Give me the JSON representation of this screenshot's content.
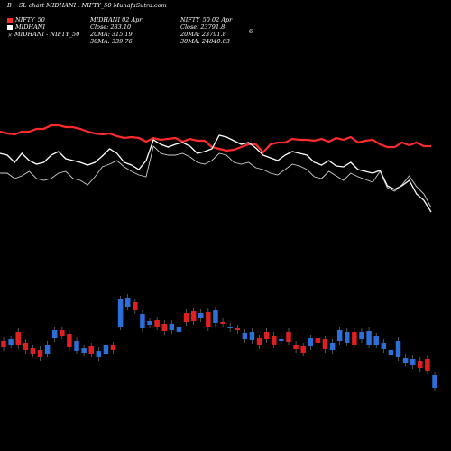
{
  "header": {
    "left_letter": "B",
    "title": "SL chart MIDHANI : NIFTY_50  MunafaSutra.com"
  },
  "legend": [
    {
      "label": "NIFTY_50",
      "color": "#ff2a2a"
    },
    {
      "label": "MIDHANI",
      "color": "#ffffff"
    },
    {
      "label": "MIDHANI - NIFTY_50",
      "color": "#bbbbbb"
    }
  ],
  "legend_small": "207",
  "midhani_block": {
    "line1": "MIDHANI 02 Apr",
    "line2": "Close: 283.10",
    "line3": "20MA: 315.19",
    "line4": "30MA: 339.76"
  },
  "nifty_block": {
    "line1": "NIFTY_50  02 Apr",
    "line2": "Close: 23791.8",
    "line3": "20MA: 23791.8",
    "line4": "30MA: 24840.83"
  },
  "stray_text": "6",
  "colors": {
    "background": "#000000",
    "nifty": "#ff2a2a",
    "midhani": "#ffffff",
    "ratio": "#cfcfcf",
    "up": "#2d6fd9",
    "down": "#e02020"
  },
  "chart_data": [
    {
      "type": "line",
      "title": "",
      "x": [
        1,
        2,
        3,
        4,
        5,
        6,
        7,
        8,
        9,
        10,
        11,
        12,
        13,
        14,
        15,
        16,
        17,
        18,
        19,
        20,
        21,
        22,
        23,
        24,
        25,
        26,
        27,
        28,
        29,
        30,
        31,
        32,
        33,
        34,
        35,
        36,
        37,
        38,
        39,
        40,
        41,
        42,
        43,
        44,
        45,
        46,
        47,
        48,
        49,
        50,
        51,
        52,
        53,
        54,
        55,
        56,
        57,
        58,
        59,
        60
      ],
      "series": [
        {
          "name": "NIFTY_50",
          "values": [
            146,
            148,
            149,
            146,
            146,
            143,
            143,
            139,
            139,
            141,
            141,
            143,
            146,
            148,
            149,
            148,
            151,
            153,
            152,
            153,
            157,
            153,
            155,
            154,
            153,
            157,
            154,
            156,
            156,
            163,
            165,
            167,
            166,
            163,
            160,
            160,
            169,
            160,
            158,
            158,
            154,
            155,
            155,
            156,
            154,
            157,
            153,
            155,
            152,
            158,
            156,
            155,
            160,
            163,
            163,
            158,
            161,
            158,
            162,
            162
          ]
        },
        {
          "name": "MIDHANI",
          "values": [
            170,
            172,
            180,
            170,
            178,
            182,
            180,
            172,
            168,
            176,
            178,
            180,
            183,
            180,
            173,
            165,
            170,
            180,
            183,
            188,
            178,
            155,
            160,
            163,
            160,
            158,
            162,
            170,
            168,
            165,
            150,
            152,
            156,
            160,
            158,
            164,
            172,
            175,
            178,
            172,
            168,
            170,
            172,
            180,
            183,
            178,
            184,
            185,
            180,
            188,
            190,
            192,
            189,
            206,
            210,
            206,
            200,
            215,
            222,
            235
          ]
        },
        {
          "name": "MIDHANI - NIFTY_50",
          "values": [
            192,
            192,
            198,
            195,
            190,
            198,
            200,
            198,
            192,
            190,
            198,
            200,
            205,
            196,
            185,
            182,
            178,
            185,
            190,
            194,
            196,
            162,
            170,
            172,
            172,
            170,
            174,
            180,
            182,
            178,
            170,
            172,
            180,
            182,
            180,
            186,
            188,
            192,
            194,
            188,
            182,
            184,
            188,
            196,
            198,
            190,
            195,
            200,
            192,
            196,
            199,
            202,
            190,
            208,
            212,
            205,
            195,
            207,
            215,
            230
          ]
        }
      ]
    },
    {
      "type": "bar",
      "title": "",
      "description_series": "candlestick",
      "x": [
        1,
        2,
        3,
        4,
        5,
        6,
        7,
        8,
        9,
        10,
        11,
        12,
        13,
        14,
        15,
        16,
        17,
        18,
        19,
        20,
        21,
        22,
        23,
        24,
        25,
        26,
        27,
        28,
        29,
        30,
        31,
        32,
        33,
        34,
        35,
        36,
        37,
        38,
        39,
        40,
        41,
        42,
        43,
        44,
        45,
        46,
        47,
        48,
        49,
        50,
        51,
        52,
        53,
        54,
        55,
        56,
        57,
        58,
        59,
        60
      ],
      "series": [
        {
          "name": "open",
          "values": [
            378,
            382,
            368,
            380,
            386,
            388,
            392,
            375,
            366,
            370,
            389,
            391,
            384,
            396,
            393,
            383,
            362,
            340,
            335,
            364,
            360,
            355,
            359,
            366,
            368,
            347,
            345,
            353,
            346,
            358,
            357,
            364,
            364,
            376,
            377,
            375,
            368,
            372,
            378,
            368,
            382,
            384,
            384,
            375,
            376,
            388,
            378,
            380,
            368,
            376,
            382,
            382,
            387,
            394,
            396,
            402,
            405,
            400,
            398,
            430
          ]
        },
        {
          "name": "close",
          "values": [
            385,
            376,
            383,
            388,
            392,
            396,
            382,
            366,
            372,
            385,
            378,
            386,
            392,
            389,
            383,
            388,
            332,
            330,
            344,
            348,
            356,
            362,
            367,
            359,
            362,
            357,
            356,
            347,
            363,
            344,
            358,
            362,
            366,
            369,
            368,
            383,
            376,
            382,
            376,
            379,
            387,
            391,
            375,
            380,
            387,
            380,
            366,
            368,
            382,
            368,
            367,
            373,
            380,
            388,
            378,
            397,
            398,
            408,
            411,
            416
          ]
        }
      ],
      "categories": [
        "Apr 2"
      ]
    }
  ]
}
